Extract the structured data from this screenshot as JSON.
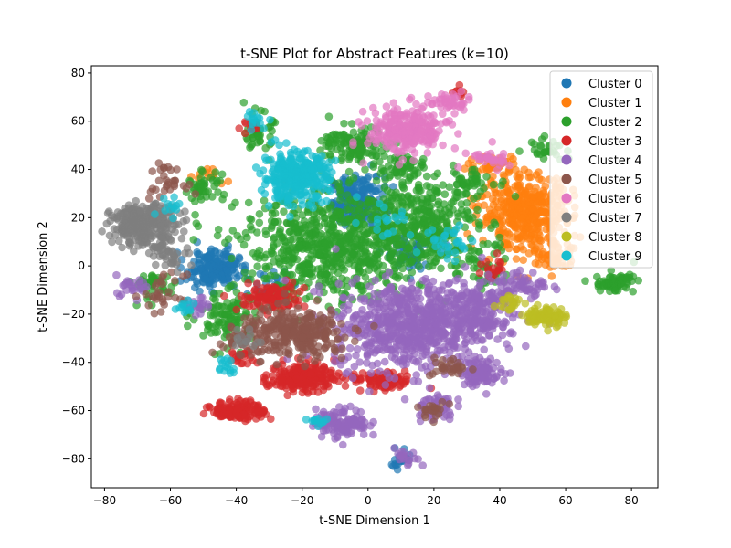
{
  "chart_data": {
    "type": "scatter",
    "title": "t-SNE Plot for Abstract Features (k=10)",
    "xlabel": "t-SNE Dimension 1",
    "ylabel": "t-SNE Dimension 2",
    "xlim": [
      -84,
      88
    ],
    "ylim": [
      -92,
      83
    ],
    "xticks": [
      -80,
      -60,
      -40,
      -20,
      0,
      20,
      40,
      60,
      80
    ],
    "yticks": [
      -80,
      -60,
      -40,
      -20,
      0,
      20,
      40,
      60,
      80
    ],
    "xtick_labels": [
      "−80",
      "−60",
      "−40",
      "−20",
      "0",
      "20",
      "40",
      "60",
      "80"
    ],
    "ytick_labels": [
      "−80",
      "−60",
      "−40",
      "−20",
      "0",
      "20",
      "40",
      "60",
      "80"
    ],
    "grid": false,
    "legend_position": "top-right",
    "series": [
      {
        "name": "Cluster 0",
        "color": "#1f77b4",
        "groups": [
          {
            "cx": -3,
            "cy": 27,
            "sx": 4,
            "sy": 5,
            "n": 220
          },
          {
            "cx": -47,
            "cy": -1,
            "sx": 4,
            "sy": 4,
            "n": 180
          },
          {
            "cx": 12,
            "cy": 5,
            "sx": 4,
            "sy": 4,
            "n": 60
          },
          {
            "cx": 10,
            "cy": -80,
            "sx": 2,
            "sy": 2,
            "n": 25
          },
          {
            "cx": -30,
            "cy": -8,
            "sx": 3,
            "sy": 3,
            "n": 25
          }
        ]
      },
      {
        "name": "Cluster 1",
        "color": "#ff7f0e",
        "groups": [
          {
            "cx": 48,
            "cy": 22,
            "sx": 7,
            "sy": 8,
            "n": 420
          },
          {
            "cx": 38,
            "cy": 42,
            "sx": 4,
            "sy": 2,
            "n": 40
          },
          {
            "cx": 57,
            "cy": 5,
            "sx": 3,
            "sy": 4,
            "n": 50
          },
          {
            "cx": -49,
            "cy": 37,
            "sx": 3,
            "sy": 2,
            "n": 12
          }
        ]
      },
      {
        "name": "Cluster 2",
        "color": "#2ca02c",
        "groups": [
          {
            "cx": -10,
            "cy": 8,
            "sx": 14,
            "sy": 11,
            "n": 700
          },
          {
            "cx": 15,
            "cy": 18,
            "sx": 9,
            "sy": 9,
            "n": 300
          },
          {
            "cx": -4,
            "cy": 50,
            "sx": 5,
            "sy": 4,
            "n": 120
          },
          {
            "cx": -33,
            "cy": 55,
            "sx": 2,
            "sy": 4,
            "n": 45
          },
          {
            "cx": -50,
            "cy": 33,
            "sx": 3,
            "sy": 3,
            "n": 45
          },
          {
            "cx": -43,
            "cy": -22,
            "sx": 5,
            "sy": 6,
            "n": 110
          },
          {
            "cx": 75,
            "cy": -7,
            "sx": 3,
            "sy": 2,
            "n": 70
          },
          {
            "cx": 54,
            "cy": 49,
            "sx": 3,
            "sy": 2,
            "n": 30
          },
          {
            "cx": -65,
            "cy": -8,
            "sx": 4,
            "sy": 3,
            "n": 40
          },
          {
            "cx": 30,
            "cy": 34,
            "sx": 4,
            "sy": 3,
            "n": 50
          },
          {
            "cx": 10,
            "cy": 40,
            "sx": 5,
            "sy": 3,
            "n": 60
          },
          {
            "cx": 34,
            "cy": 0,
            "sx": 4,
            "sy": 5,
            "n": 50
          }
        ]
      },
      {
        "name": "Cluster 3",
        "color": "#d62728",
        "groups": [
          {
            "cx": -20,
            "cy": -46,
            "sx": 5,
            "sy": 3,
            "n": 200
          },
          {
            "cx": -39,
            "cy": -60,
            "sx": 4,
            "sy": 2,
            "n": 130
          },
          {
            "cx": -29,
            "cy": -13,
            "sx": 5,
            "sy": 3,
            "n": 100
          },
          {
            "cx": 4,
            "cy": -48,
            "sx": 5,
            "sy": 2,
            "n": 80
          },
          {
            "cx": -36,
            "cy": 58,
            "sx": 1.5,
            "sy": 1.5,
            "n": 12
          },
          {
            "cx": 38,
            "cy": -2,
            "sx": 2,
            "sy": 3,
            "n": 20
          },
          {
            "cx": -38,
            "cy": -38,
            "sx": 2,
            "sy": 2,
            "n": 20
          },
          {
            "cx": 28,
            "cy": 72,
            "sx": 1,
            "sy": 1.5,
            "n": 8
          }
        ]
      },
      {
        "name": "Cluster 4",
        "color": "#9467bd",
        "groups": [
          {
            "cx": 12,
            "cy": -25,
            "sx": 11,
            "sy": 9,
            "n": 650
          },
          {
            "cx": 32,
            "cy": -18,
            "sx": 7,
            "sy": 6,
            "n": 200
          },
          {
            "cx": -8,
            "cy": -65,
            "sx": 4,
            "sy": 3,
            "n": 130
          },
          {
            "cx": 34,
            "cy": -44,
            "sx": 3,
            "sy": 3,
            "n": 90
          },
          {
            "cx": 20,
            "cy": -58,
            "sx": 3,
            "sy": 3,
            "n": 50
          },
          {
            "cx": 47,
            "cy": -8,
            "sx": 4,
            "sy": 3,
            "n": 60
          },
          {
            "cx": -72,
            "cy": -8,
            "sx": 3,
            "sy": 2,
            "n": 25
          },
          {
            "cx": -52,
            "cy": -17,
            "sx": 2,
            "sy": 2,
            "n": 20
          },
          {
            "cx": 12,
            "cy": -80,
            "sx": 2,
            "sy": 2,
            "n": 20
          }
        ]
      },
      {
        "name": "Cluster 5",
        "color": "#8c564b",
        "groups": [
          {
            "cx": -22,
            "cy": -28,
            "sx": 8,
            "sy": 5,
            "n": 300
          },
          {
            "cx": -62,
            "cy": 35,
            "sx": 3,
            "sy": 3,
            "n": 30
          },
          {
            "cx": -62,
            "cy": -12,
            "sx": 3,
            "sy": 4,
            "n": 30
          },
          {
            "cx": 25,
            "cy": -42,
            "sx": 3,
            "sy": 2,
            "n": 30
          },
          {
            "cx": 20,
            "cy": -60,
            "sx": 2,
            "sy": 2,
            "n": 20
          },
          {
            "cx": -40,
            "cy": -30,
            "sx": 3,
            "sy": 3,
            "n": 25
          }
        ]
      },
      {
        "name": "Cluster 6",
        "color": "#e377c2",
        "groups": [
          {
            "cx": 12,
            "cy": 56,
            "sx": 6,
            "sy": 5,
            "n": 250
          },
          {
            "cx": 25,
            "cy": 68,
            "sx": 3,
            "sy": 2,
            "n": 40
          },
          {
            "cx": 36,
            "cy": 44,
            "sx": 3,
            "sy": 2,
            "n": 30
          }
        ]
      },
      {
        "name": "Cluster 7",
        "color": "#7f7f7f",
        "groups": [
          {
            "cx": -68,
            "cy": 17,
            "sx": 5,
            "sy": 4,
            "n": 300
          },
          {
            "cx": -60,
            "cy": 5,
            "sx": 3,
            "sy": 3,
            "n": 40
          },
          {
            "cx": -37,
            "cy": -30,
            "sx": 2,
            "sy": 2,
            "n": 15
          }
        ]
      },
      {
        "name": "Cluster 8",
        "color": "#bcbd22",
        "groups": [
          {
            "cx": 54,
            "cy": -21,
            "sx": 3,
            "sy": 2,
            "n": 100
          },
          {
            "cx": 43,
            "cy": -15,
            "sx": 2,
            "sy": 2,
            "n": 20
          }
        ]
      },
      {
        "name": "Cluster 9",
        "color": "#17becf",
        "groups": [
          {
            "cx": -22,
            "cy": 37,
            "sx": 5,
            "sy": 5,
            "n": 320
          },
          {
            "cx": -34,
            "cy": 60,
            "sx": 2,
            "sy": 2,
            "n": 15
          },
          {
            "cx": -60,
            "cy": 25,
            "sx": 2,
            "sy": 2,
            "n": 12
          },
          {
            "cx": -43,
            "cy": -41,
            "sx": 2,
            "sy": 2,
            "n": 15
          },
          {
            "cx": -15,
            "cy": -65,
            "sx": 2,
            "sy": 1.5,
            "n": 12
          },
          {
            "cx": -55,
            "cy": -17,
            "sx": 2,
            "sy": 2,
            "n": 12
          },
          {
            "cx": 25,
            "cy": 10,
            "sx": 4,
            "sy": 4,
            "n": 30
          },
          {
            "cx": 5,
            "cy": 20,
            "sx": 4,
            "sy": 4,
            "n": 20
          }
        ]
      }
    ]
  }
}
